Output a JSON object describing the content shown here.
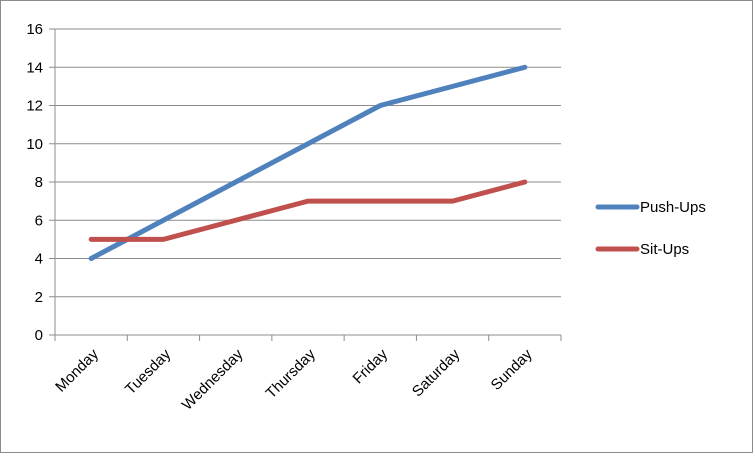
{
  "chart_data": {
    "type": "line",
    "categories": [
      "Monday",
      "Tuesday",
      "Wednesday",
      "Thursday",
      "Friday",
      "Saturday",
      "Sunday"
    ],
    "series": [
      {
        "name": "Push-Ups",
        "color": "#4f81bd",
        "values": [
          4,
          6,
          8,
          10,
          12,
          13,
          14
        ]
      },
      {
        "name": "Sit-Ups",
        "color": "#c0504d",
        "values": [
          5,
          5,
          6,
          7,
          7,
          7,
          8
        ]
      }
    ],
    "ylim": [
      0,
      16
    ],
    "yticks": [
      0,
      2,
      4,
      6,
      8,
      10,
      12,
      14,
      16
    ],
    "grid": true,
    "legend": "right"
  }
}
